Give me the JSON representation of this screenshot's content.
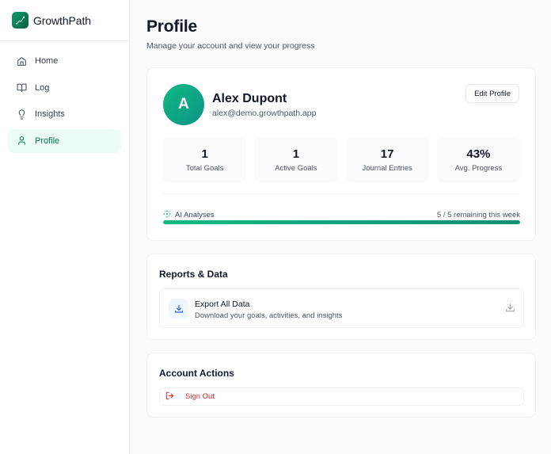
{
  "app": {
    "name": "GrowthPath"
  },
  "sidebar": {
    "items": [
      {
        "label": "Home",
        "icon": "home-icon",
        "active": false
      },
      {
        "label": "Log",
        "icon": "book-open-icon",
        "active": false
      },
      {
        "label": "Insights",
        "icon": "lightbulb-icon",
        "active": false
      },
      {
        "label": "Profile",
        "icon": "user-icon",
        "active": true
      }
    ]
  },
  "header": {
    "title": "Profile",
    "subtitle": "Manage your account and view your progress"
  },
  "profile": {
    "avatar_initial": "A",
    "name": "Alex Dupont",
    "email": "alex@demo.growthpath.app",
    "edit_label": "Edit Profile",
    "stats": [
      {
        "value": "1",
        "label": "Total Goals"
      },
      {
        "value": "1",
        "label": "Active Goals"
      },
      {
        "value": "17",
        "label": "Journal Entries"
      },
      {
        "value": "43%",
        "label": "Avg. Progress"
      }
    ],
    "ai": {
      "label": "AI Analyses",
      "remaining_text": "5 / 5 remaining this week",
      "progress_percent": 100
    }
  },
  "reports": {
    "title": "Reports & Data",
    "export": {
      "title": "Export All Data",
      "subtitle": "Download your goals, activities, and insights"
    }
  },
  "account": {
    "title": "Account Actions",
    "signout_label": "Sign Out"
  },
  "colors": {
    "brand": "#0f9d6b",
    "active_bg": "#ecfdf5",
    "active_text": "#047857",
    "danger": "#dc2626",
    "export_accent": "#2563eb"
  }
}
